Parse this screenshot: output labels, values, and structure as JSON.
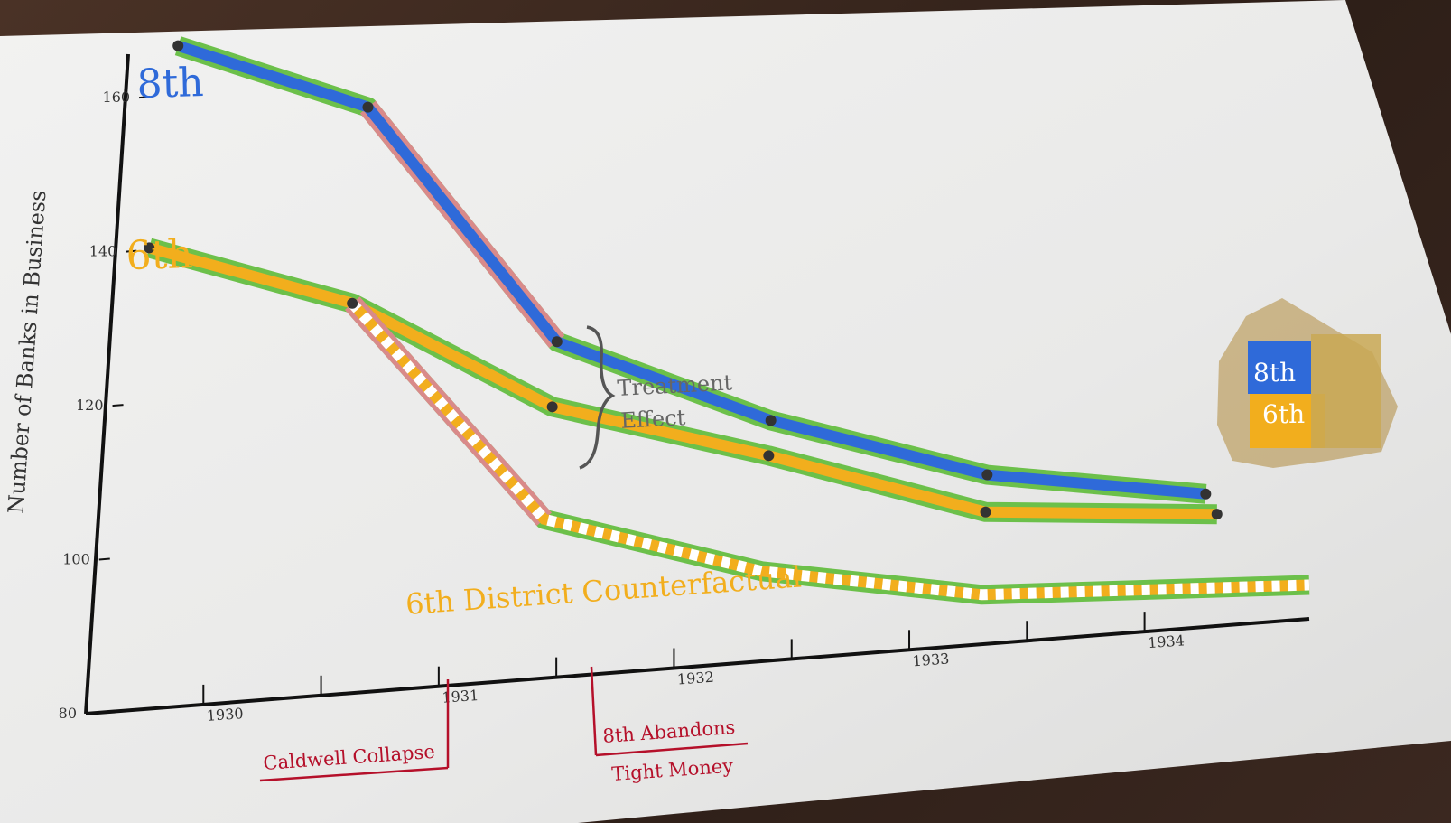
{
  "chart_data": {
    "type": "line",
    "title": "",
    "xlabel": "",
    "ylabel": "Number of Banks in Business",
    "ylim": [
      80,
      168
    ],
    "xlim": [
      1929.5,
      1934.7
    ],
    "grid": false,
    "y_ticks": [
      80,
      100,
      120,
      140,
      160
    ],
    "x_ticks": [
      {
        "value": 1930,
        "label": "1930"
      },
      {
        "value": 1930.5,
        "label": ""
      },
      {
        "value": 1931,
        "label": "1931"
      },
      {
        "value": 1931.5,
        "label": ""
      },
      {
        "value": 1932,
        "label": "1932"
      },
      {
        "value": 1932.5,
        "label": ""
      },
      {
        "value": 1933,
        "label": "1933"
      },
      {
        "value": 1933.5,
        "label": ""
      },
      {
        "value": 1934,
        "label": "1934"
      }
    ],
    "series": [
      {
        "name": "8th",
        "color": "#2f6ad9",
        "x": [
          1929.65,
          1930.5,
          1931.4,
          1932.35,
          1933.3,
          1934.25
        ],
        "y": [
          168,
          167,
          137,
          128,
          121,
          121
        ]
      },
      {
        "name": "6th",
        "color": "#f2ae1d",
        "x": [
          1929.6,
          1930.5,
          1931.4,
          1932.35,
          1933.3,
          1934.3
        ],
        "y": [
          141,
          138,
          126,
          121,
          112,
          115
        ]
      },
      {
        "name": "6th District Counterfactual",
        "color": "#f2ae1d",
        "x": [
          1930.5,
          1931.4,
          1932.35,
          1933.3,
          1934.7
        ],
        "y": [
          138,
          107,
          98,
          92,
          92
        ]
      }
    ],
    "annotations": [
      {
        "text_lines": [
          "Treatment",
          "Effect"
        ],
        "x": 1931.4,
        "y_top": 126,
        "y_bottom": 107
      },
      {
        "text_lines": [
          "Caldwell Collapse"
        ],
        "x": 1930.9
      },
      {
        "text_lines": [
          "8th Abandons",
          "Tight Money"
        ],
        "x": 1931.5
      }
    ],
    "map_labels": [
      "8th",
      "6th"
    ]
  },
  "colors": {
    "blue": "#2f6ad9",
    "gold": "#f2ae1d",
    "green": "#6cc04a",
    "pink": "#d98a8a",
    "red": "#b5102a",
    "paper": "#ededed"
  }
}
